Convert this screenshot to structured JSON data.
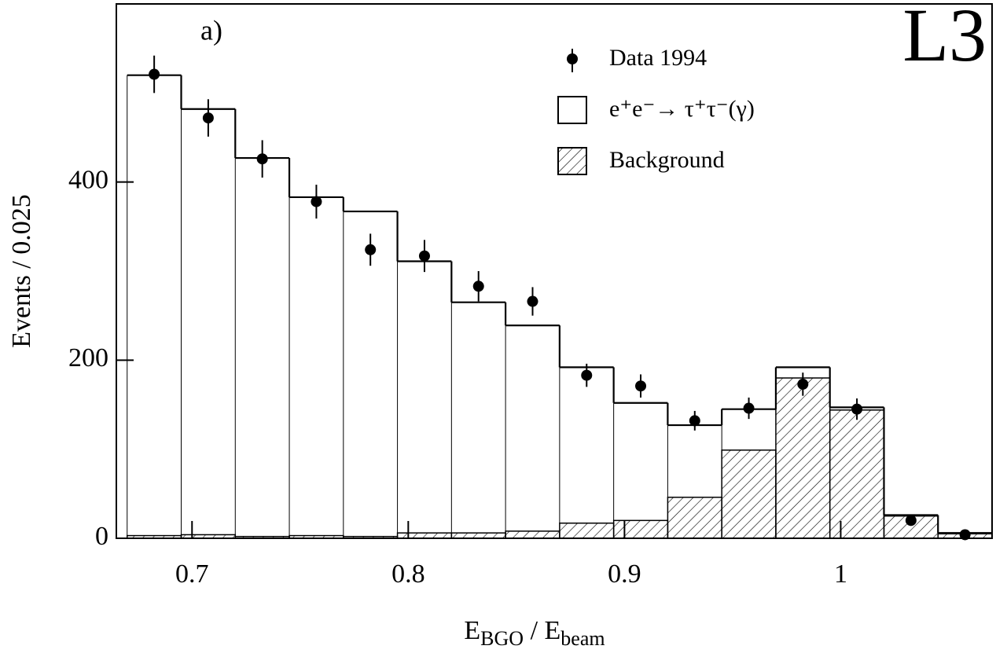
{
  "chart_data": {
    "type": "histogram",
    "annotation": "a)",
    "logo": "L3",
    "ylabel": "Events / 0.025",
    "xlabel": [
      "E",
      "BGO",
      " / E",
      "beam"
    ],
    "bins": [
      0.67,
      0.695,
      0.72,
      0.745,
      0.77,
      0.795,
      0.82,
      0.845,
      0.87,
      0.895,
      0.92,
      0.945,
      0.97,
      0.995,
      1.02,
      1.045,
      1.07
    ],
    "series": [
      {
        "name": "Background",
        "color": "#000000",
        "hatch": true,
        "values": [
          3,
          4,
          2,
          3,
          2,
          6,
          6,
          8,
          17,
          20,
          46,
          99,
          180,
          144,
          25,
          5
        ]
      },
      {
        "name": "e⁺e⁻→ τ⁺τ⁻(γ)",
        "color": "#000000",
        "hatch": false,
        "values": [
          517,
          478,
          425,
          380,
          365,
          305,
          259,
          231,
          175,
          132,
          81,
          46,
          12,
          3,
          1,
          1
        ]
      }
    ],
    "points": {
      "name": "Data 1994",
      "color": "#000000",
      "x": [
        0.6825,
        0.7075,
        0.7325,
        0.7575,
        0.7825,
        0.8075,
        0.8325,
        0.8575,
        0.8825,
        0.9075,
        0.9325,
        0.9575,
        0.9825,
        1.0075,
        1.0325,
        1.0575
      ],
      "values": [
        521,
        472,
        426,
        378,
        324,
        317,
        283,
        266,
        183,
        171,
        132,
        146,
        173,
        145,
        20,
        4
      ],
      "errors": [
        21,
        21,
        21,
        19,
        18,
        18,
        17,
        16,
        13,
        13,
        11,
        12,
        13,
        12,
        4,
        2
      ]
    },
    "xlim": [
      0.665,
      1.07
    ],
    "ylim": [
      0,
      600
    ],
    "xticks": [
      0.7,
      0.8,
      0.9,
      1
    ],
    "yticks": [
      0,
      200,
      400
    ]
  }
}
